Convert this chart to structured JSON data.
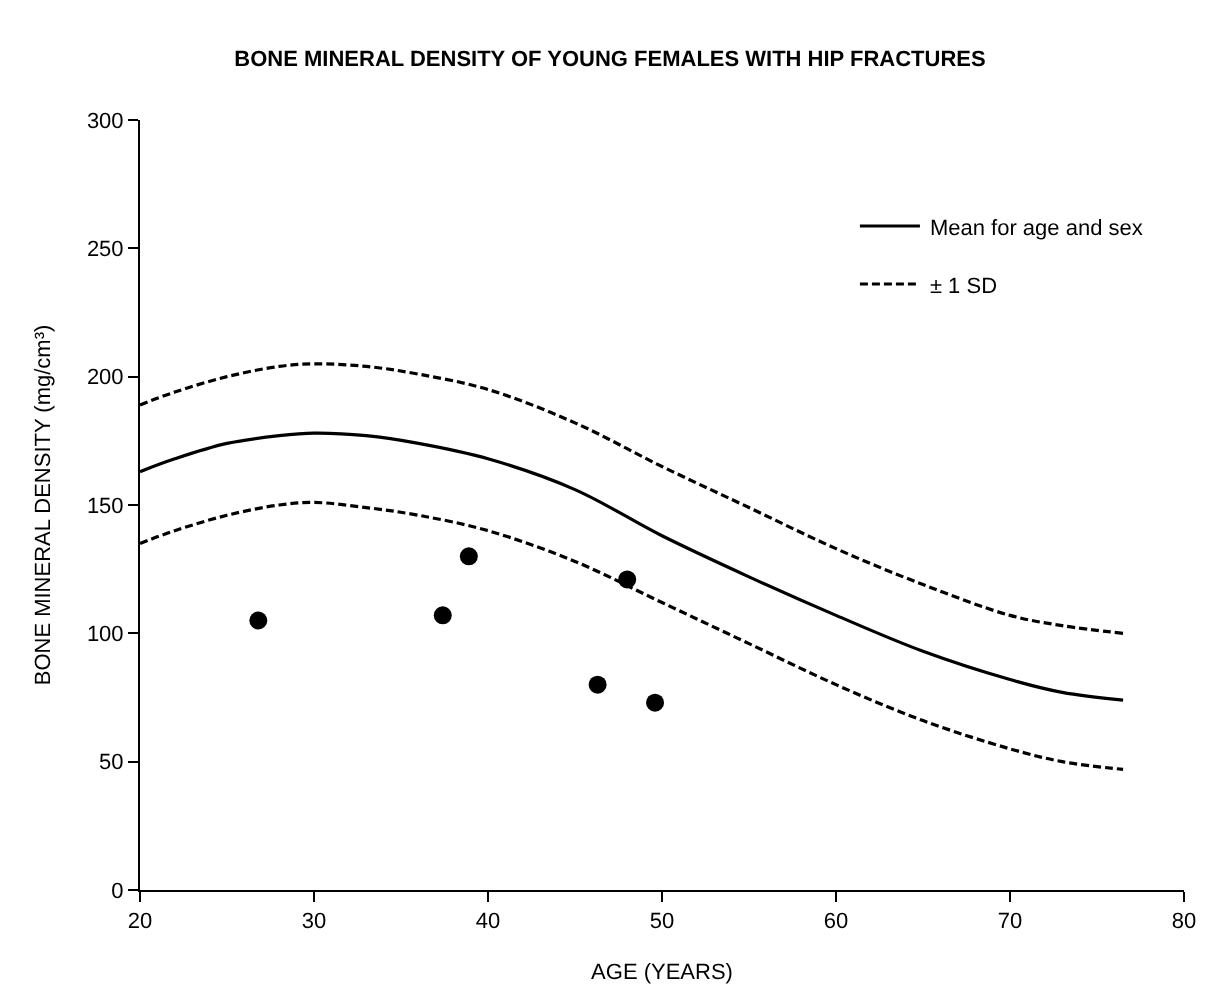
{
  "chart_data": {
    "type": "line",
    "title": "BONE MINERAL DENSITY OF YOUNG FEMALES WITH HIP FRACTURES",
    "xlabel": "AGE (YEARS)",
    "ylabel": "BONE MINERAL DENSITY (mg/cm³)",
    "xlim": [
      20,
      80
    ],
    "xticks": [
      20,
      30,
      40,
      50,
      60,
      70,
      80
    ],
    "ylim": [
      0,
      300
    ],
    "yticks": [
      0,
      50,
      100,
      150,
      200,
      250,
      300
    ],
    "legend": "top right",
    "series": [
      {
        "name": "Mean for age and sex",
        "color": "#000000",
        "line_style": "solid",
        "x": [
          20,
          22,
          25,
          28,
          30,
          33,
          36,
          40,
          45,
          50,
          55,
          60,
          65,
          70,
          73,
          76.5
        ],
        "values": [
          163,
          168,
          174,
          177,
          178,
          177,
          174,
          168,
          156,
          138,
          122,
          107,
          93,
          82,
          77,
          74
        ]
      },
      {
        "name": "± 1 SD",
        "color": "#000000",
        "line_style": "dashed",
        "x": [
          20,
          22,
          25,
          28,
          30,
          33,
          36,
          40,
          45,
          50,
          55,
          60,
          65,
          70,
          73,
          76.5
        ],
        "values": [
          189,
          194,
          200,
          204,
          205,
          204,
          201,
          195,
          182,
          165,
          149,
          133,
          119,
          107,
          103,
          100
        ]
      },
      {
        "color": "#000000",
        "line_style": "dashed",
        "x": [
          20,
          22,
          25,
          28,
          30,
          33,
          36,
          40,
          45,
          50,
          55,
          60,
          65,
          70,
          73,
          76.5
        ],
        "values": [
          135,
          140,
          146,
          150,
          151,
          149,
          146,
          140,
          128,
          112,
          96,
          80,
          66,
          55,
          50,
          47
        ]
      },
      {
        "color": "#000000",
        "type": "scatter",
        "marker": "circle",
        "x": [
          26.8,
          37.4,
          38.9,
          46.3,
          48.0,
          49.6
        ],
        "values": [
          105,
          107,
          130,
          80,
          121,
          73
        ]
      }
    ]
  }
}
